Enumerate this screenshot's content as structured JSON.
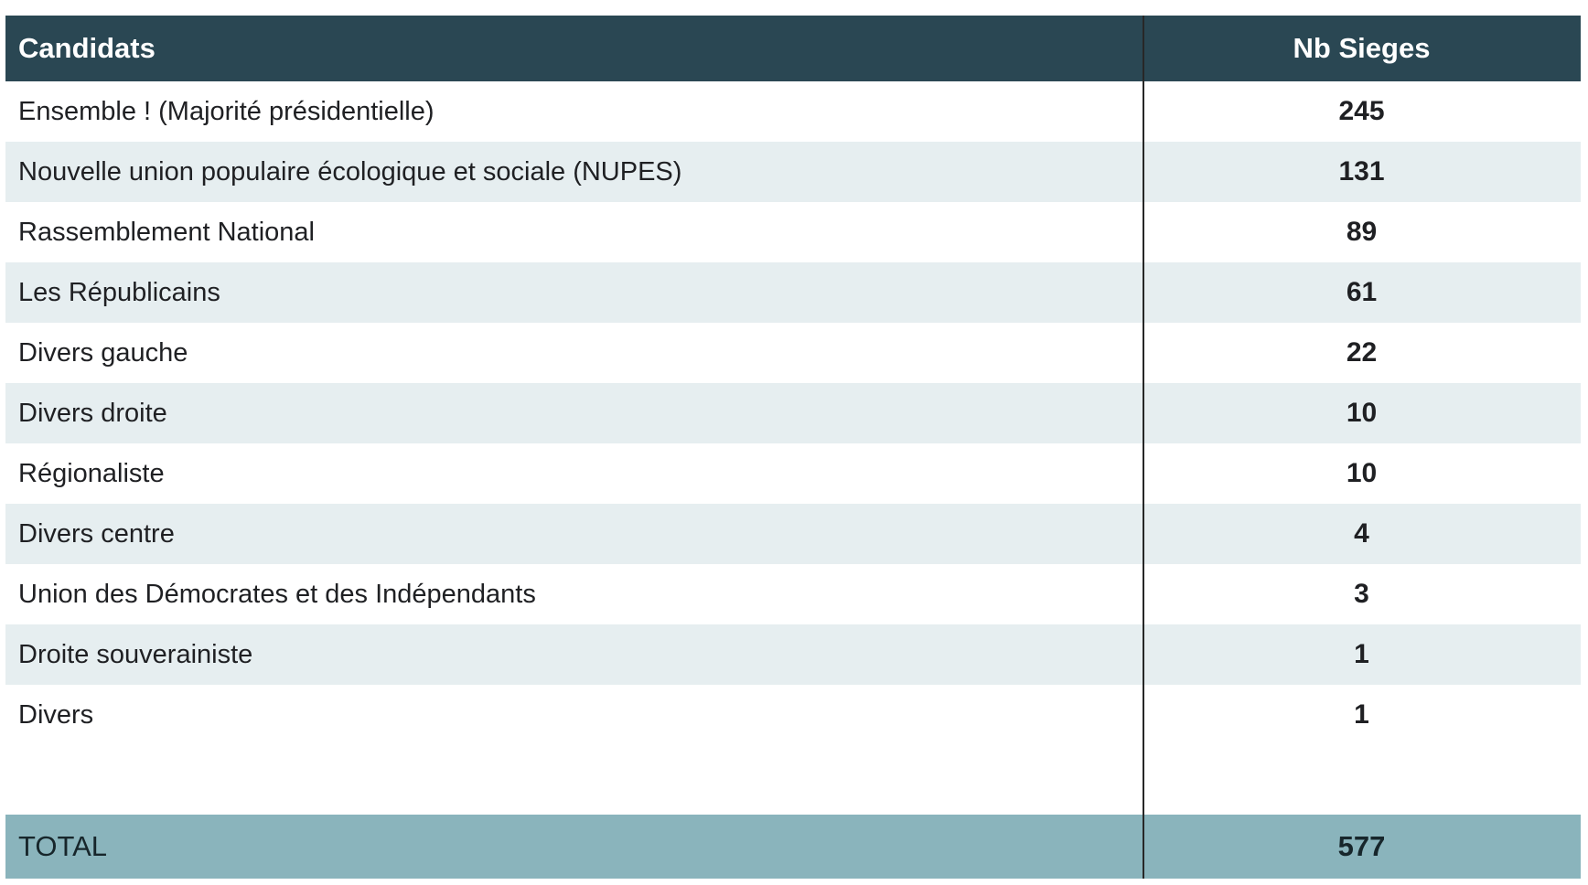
{
  "chart_data": {
    "type": "table",
    "title": "",
    "columns": [
      "Candidats",
      "Nb Sieges"
    ],
    "rows": [
      [
        "Ensemble ! (Majorité présidentielle)",
        245
      ],
      [
        "Nouvelle union populaire écologique et sociale (NUPES)",
        131
      ],
      [
        "Rassemblement National",
        89
      ],
      [
        "Les Républicains",
        61
      ],
      [
        "Divers gauche",
        22
      ],
      [
        "Divers droite",
        10
      ],
      [
        "Régionaliste",
        10
      ],
      [
        "Divers centre",
        4
      ],
      [
        "Union des Démocrates et des Indépendants",
        3
      ],
      [
        "Droite souverainiste",
        1
      ],
      [
        "Divers",
        1
      ]
    ],
    "total_row": [
      "TOTAL",
      577
    ],
    "layout": "two columns separated by a thin black vertical rule; alternating row shading; footer total band"
  },
  "table": {
    "header": {
      "candidats": "Candidats",
      "nb_sieges": "Nb Sieges"
    },
    "total_label": "TOTAL",
    "total_value": "577"
  },
  "colors": {
    "header_bg": "#2a4753",
    "header_text": "#ffffff",
    "row_bg": "#ffffff",
    "row_alt_bg": "#e6eef0",
    "total_bg": "#8ab4bc",
    "text": "#1f2023",
    "total_text": "#17262b",
    "divider": "#272727",
    "page_bg": "#ffffff"
  }
}
